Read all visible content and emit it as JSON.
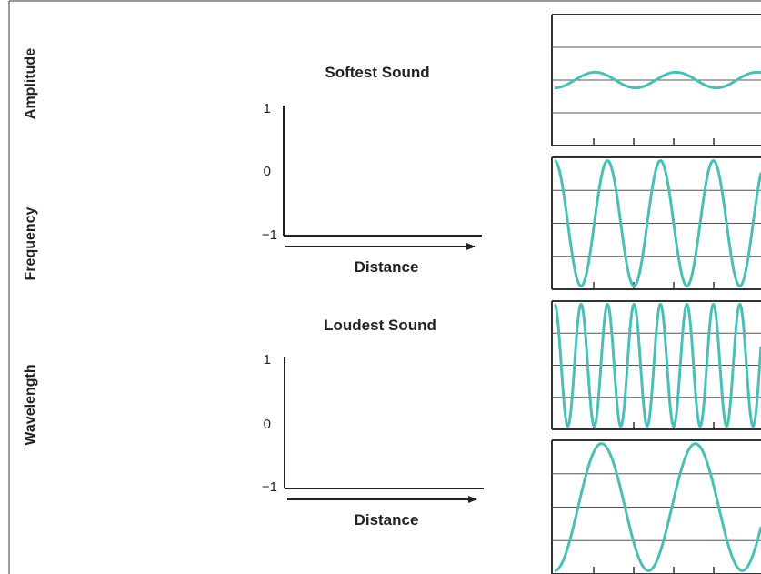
{
  "side_labels": {
    "top": "Amplitude",
    "middle": "Frequency",
    "bottom": "Wavelength"
  },
  "panels": [
    {
      "heading": "Softest Sound",
      "y_ticks": [
        "1",
        "0",
        "−1"
      ],
      "x_label": "Distance"
    },
    {
      "heading": "Loudest Sound",
      "y_ticks": [
        "1",
        "0",
        "−1"
      ],
      "x_label": "Distance"
    }
  ],
  "wave_color": "#4bbfb7",
  "waves": [
    {
      "amplitude": 0.12,
      "cycles": 2.55,
      "start_phase": 1.0
    },
    {
      "amplitude": 0.95,
      "cycles": 3.9,
      "start_phase": 0.0
    },
    {
      "amplitude": 0.95,
      "cycles": 7.8,
      "start_phase": 0.0
    },
    {
      "amplitude": 0.95,
      "cycles": 2.2,
      "start_phase": 1.0
    }
  ]
}
